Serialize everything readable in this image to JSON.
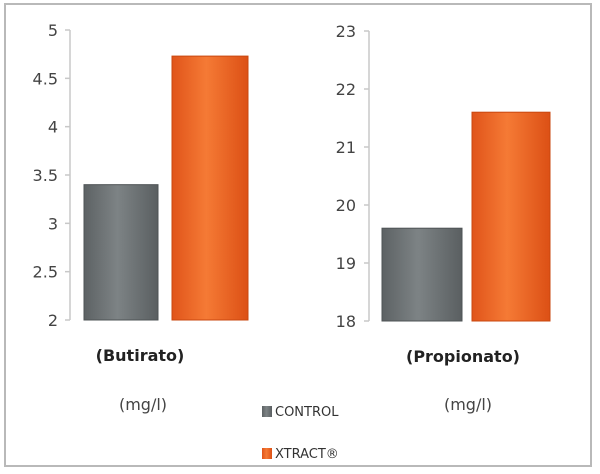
{
  "chart_data": [
    {
      "type": "bar",
      "categories": [
        "CONTROL",
        "XTRACT®"
      ],
      "values": [
        3.4,
        4.73
      ],
      "xlabel": "(Butirato)",
      "unit": "(mg/l)",
      "ylim": [
        2,
        5
      ],
      "yticks": [
        "2",
        "2.5",
        "3",
        "3.5",
        "4",
        "4.5",
        "5"
      ],
      "ytick_values": [
        2,
        2.5,
        3,
        3.5,
        4,
        4.5,
        5
      ]
    },
    {
      "type": "bar",
      "categories": [
        "CONTROL",
        "XTRACT®"
      ],
      "values": [
        19.6,
        21.6
      ],
      "xlabel": "(Propionato)",
      "unit": "(mg/l)",
      "ylim": [
        18,
        23
      ],
      "yticks": [
        "18",
        "19",
        "20",
        "21",
        "22",
        "23"
      ],
      "ytick_values": [
        18,
        19,
        20,
        21,
        22,
        23
      ]
    }
  ],
  "legend": {
    "placement": "bottom-center",
    "items": [
      {
        "label": "CONTROL",
        "color": "#6f7577"
      },
      {
        "label": "XTRACT®",
        "color": "#f26522"
      }
    ]
  },
  "colors": {
    "control": "#6f7577",
    "xtract": "#f26522",
    "axis": "#c8c8c8"
  }
}
